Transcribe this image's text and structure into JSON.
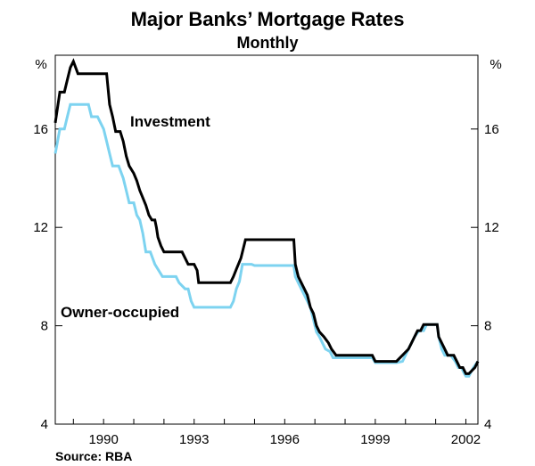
{
  "chart_data": {
    "type": "line",
    "title": "Major Banks’ Mortgage Rates",
    "subtitle": "Monthly",
    "y_unit_left": "%",
    "y_unit_right": "%",
    "ylim": [
      4,
      19
    ],
    "y_ticks": [
      "4",
      "8",
      "12",
      "16"
    ],
    "x_ticks": [
      "1990",
      "1993",
      "1996",
      "1999",
      "2002"
    ],
    "x_tick_values": [
      1990,
      1993,
      1996,
      1999,
      2002
    ],
    "xlim": [
      1988.4,
      2002.4
    ],
    "grid": false,
    "source": "Source: RBA",
    "colors": {
      "investment": "#000000",
      "owner_occupied": "#7dd3f0",
      "axis": "#000000"
    },
    "series": [
      {
        "name": "Investment",
        "points": [
          [
            1988.4,
            16.25
          ],
          [
            1988.55,
            17.5
          ],
          [
            1988.7,
            17.5
          ],
          [
            1988.8,
            18.0
          ],
          [
            1988.9,
            18.5
          ],
          [
            1989.0,
            18.75
          ],
          [
            1989.15,
            18.25
          ],
          [
            1989.5,
            18.25
          ],
          [
            1989.8,
            18.25
          ],
          [
            1990.1,
            18.25
          ],
          [
            1990.2,
            17.0
          ],
          [
            1990.3,
            16.5
          ],
          [
            1990.4,
            15.9
          ],
          [
            1990.55,
            15.9
          ],
          [
            1990.65,
            15.5
          ],
          [
            1990.75,
            14.9
          ],
          [
            1990.85,
            14.5
          ],
          [
            1991.0,
            14.2
          ],
          [
            1991.1,
            13.9
          ],
          [
            1991.2,
            13.5
          ],
          [
            1991.3,
            13.2
          ],
          [
            1991.4,
            12.9
          ],
          [
            1991.5,
            12.5
          ],
          [
            1991.6,
            12.3
          ],
          [
            1991.7,
            12.3
          ],
          [
            1991.75,
            12.0
          ],
          [
            1991.8,
            11.6
          ],
          [
            1991.9,
            11.25
          ],
          [
            1992.0,
            11.0
          ],
          [
            1992.2,
            11.0
          ],
          [
            1992.4,
            11.0
          ],
          [
            1992.6,
            11.0
          ],
          [
            1992.7,
            10.75
          ],
          [
            1992.8,
            10.5
          ],
          [
            1993.0,
            10.5
          ],
          [
            1993.1,
            10.25
          ],
          [
            1993.15,
            9.75
          ],
          [
            1993.3,
            9.75
          ],
          [
            1993.6,
            9.75
          ],
          [
            1993.9,
            9.75
          ],
          [
            1994.0,
            9.75
          ],
          [
            1994.2,
            9.75
          ],
          [
            1994.3,
            10.0
          ],
          [
            1994.4,
            10.3
          ],
          [
            1994.55,
            10.75
          ],
          [
            1994.7,
            11.5
          ],
          [
            1994.9,
            11.5
          ],
          [
            1995.3,
            11.5
          ],
          [
            1995.7,
            11.5
          ],
          [
            1995.9,
            11.5
          ],
          [
            1996.0,
            11.5
          ],
          [
            1996.15,
            11.5
          ],
          [
            1996.3,
            11.5
          ],
          [
            1996.35,
            10.5
          ],
          [
            1996.45,
            10.0
          ],
          [
            1996.55,
            9.75
          ],
          [
            1996.65,
            9.5
          ],
          [
            1996.75,
            9.25
          ],
          [
            1996.85,
            8.75
          ],
          [
            1996.95,
            8.5
          ],
          [
            1997.05,
            8.0
          ],
          [
            1997.15,
            7.75
          ],
          [
            1997.3,
            7.55
          ],
          [
            1997.45,
            7.3
          ],
          [
            1997.55,
            7.05
          ],
          [
            1997.7,
            6.8
          ],
          [
            1998.0,
            6.8
          ],
          [
            1998.4,
            6.8
          ],
          [
            1998.7,
            6.8
          ],
          [
            1998.9,
            6.8
          ],
          [
            1999.0,
            6.55
          ],
          [
            1999.3,
            6.55
          ],
          [
            1999.5,
            6.55
          ],
          [
            1999.7,
            6.55
          ],
          [
            1999.9,
            6.8
          ],
          [
            2000.1,
            7.05
          ],
          [
            2000.2,
            7.3
          ],
          [
            2000.3,
            7.55
          ],
          [
            2000.4,
            7.8
          ],
          [
            2000.5,
            7.8
          ],
          [
            2000.6,
            8.05
          ],
          [
            2000.7,
            8.05
          ],
          [
            2000.9,
            8.05
          ],
          [
            2001.05,
            8.05
          ],
          [
            2001.1,
            7.55
          ],
          [
            2001.2,
            7.3
          ],
          [
            2001.3,
            7.05
          ],
          [
            2001.4,
            6.8
          ],
          [
            2001.6,
            6.8
          ],
          [
            2001.7,
            6.55
          ],
          [
            2001.8,
            6.3
          ],
          [
            2001.9,
            6.3
          ],
          [
            2002.0,
            6.05
          ],
          [
            2002.1,
            6.05
          ],
          [
            2002.3,
            6.3
          ],
          [
            2002.4,
            6.55
          ],
          [
            2002.6,
            6.55
          ],
          [
            2002.8,
            6.55
          ]
        ]
      },
      {
        "name": "Owner-occupied",
        "points": [
          [
            1988.4,
            15.0
          ],
          [
            1988.55,
            16.0
          ],
          [
            1988.7,
            16.0
          ],
          [
            1988.8,
            16.5
          ],
          [
            1988.9,
            17.0
          ],
          [
            1989.0,
            17.0
          ],
          [
            1989.3,
            17.0
          ],
          [
            1989.5,
            17.0
          ],
          [
            1989.6,
            16.5
          ],
          [
            1989.8,
            16.5
          ],
          [
            1989.9,
            16.25
          ],
          [
            1990.0,
            16.0
          ],
          [
            1990.1,
            15.5
          ],
          [
            1990.2,
            15.0
          ],
          [
            1990.3,
            14.5
          ],
          [
            1990.5,
            14.5
          ],
          [
            1990.65,
            14.0
          ],
          [
            1990.75,
            13.5
          ],
          [
            1990.85,
            13.0
          ],
          [
            1991.0,
            13.0
          ],
          [
            1991.1,
            12.5
          ],
          [
            1991.2,
            12.3
          ],
          [
            1991.3,
            11.75
          ],
          [
            1991.4,
            11.0
          ],
          [
            1991.55,
            11.0
          ],
          [
            1991.7,
            10.5
          ],
          [
            1991.85,
            10.2
          ],
          [
            1991.95,
            10.0
          ],
          [
            1992.1,
            10.0
          ],
          [
            1992.4,
            10.0
          ],
          [
            1992.5,
            9.75
          ],
          [
            1992.7,
            9.5
          ],
          [
            1992.8,
            9.5
          ],
          [
            1992.9,
            9.0
          ],
          [
            1993.0,
            8.75
          ],
          [
            1993.3,
            8.75
          ],
          [
            1993.6,
            8.75
          ],
          [
            1993.9,
            8.75
          ],
          [
            1994.0,
            8.75
          ],
          [
            1994.2,
            8.75
          ],
          [
            1994.3,
            9.0
          ],
          [
            1994.4,
            9.5
          ],
          [
            1994.5,
            9.8
          ],
          [
            1994.6,
            10.5
          ],
          [
            1994.7,
            10.5
          ],
          [
            1994.9,
            10.5
          ],
          [
            1995.0,
            10.45
          ],
          [
            1995.3,
            10.45
          ],
          [
            1995.6,
            10.45
          ],
          [
            1995.9,
            10.45
          ],
          [
            1996.0,
            10.45
          ],
          [
            1996.15,
            10.45
          ],
          [
            1996.3,
            10.45
          ],
          [
            1996.35,
            10.0
          ],
          [
            1996.45,
            9.75
          ],
          [
            1996.55,
            9.5
          ],
          [
            1996.65,
            9.25
          ],
          [
            1996.75,
            9.0
          ],
          [
            1996.85,
            8.75
          ],
          [
            1996.95,
            8.25
          ],
          [
            1997.05,
            7.75
          ],
          [
            1997.15,
            7.55
          ],
          [
            1997.25,
            7.3
          ],
          [
            1997.35,
            7.05
          ],
          [
            1997.5,
            6.95
          ],
          [
            1997.6,
            6.7
          ],
          [
            1997.9,
            6.7
          ],
          [
            1998.3,
            6.7
          ],
          [
            1998.7,
            6.7
          ],
          [
            1998.9,
            6.7
          ],
          [
            1999.0,
            6.5
          ],
          [
            1999.3,
            6.5
          ],
          [
            1999.5,
            6.5
          ],
          [
            1999.7,
            6.5
          ],
          [
            1999.9,
            6.55
          ],
          [
            2000.0,
            6.8
          ],
          [
            2000.1,
            7.05
          ],
          [
            2000.2,
            7.3
          ],
          [
            2000.3,
            7.55
          ],
          [
            2000.45,
            7.8
          ],
          [
            2000.6,
            7.8
          ],
          [
            2000.7,
            8.05
          ],
          [
            2000.9,
            8.05
          ],
          [
            2001.05,
            8.05
          ],
          [
            2001.1,
            7.55
          ],
          [
            2001.2,
            7.05
          ],
          [
            2001.3,
            6.8
          ],
          [
            2001.5,
            6.8
          ],
          [
            2001.65,
            6.55
          ],
          [
            2001.75,
            6.3
          ],
          [
            2001.85,
            6.3
          ],
          [
            2001.95,
            6.05
          ],
          [
            2002.0,
            5.95
          ],
          [
            2002.1,
            5.95
          ],
          [
            2002.25,
            6.3
          ],
          [
            2002.4,
            6.55
          ],
          [
            2002.6,
            6.55
          ],
          [
            2002.8,
            6.55
          ]
        ]
      }
    ]
  }
}
